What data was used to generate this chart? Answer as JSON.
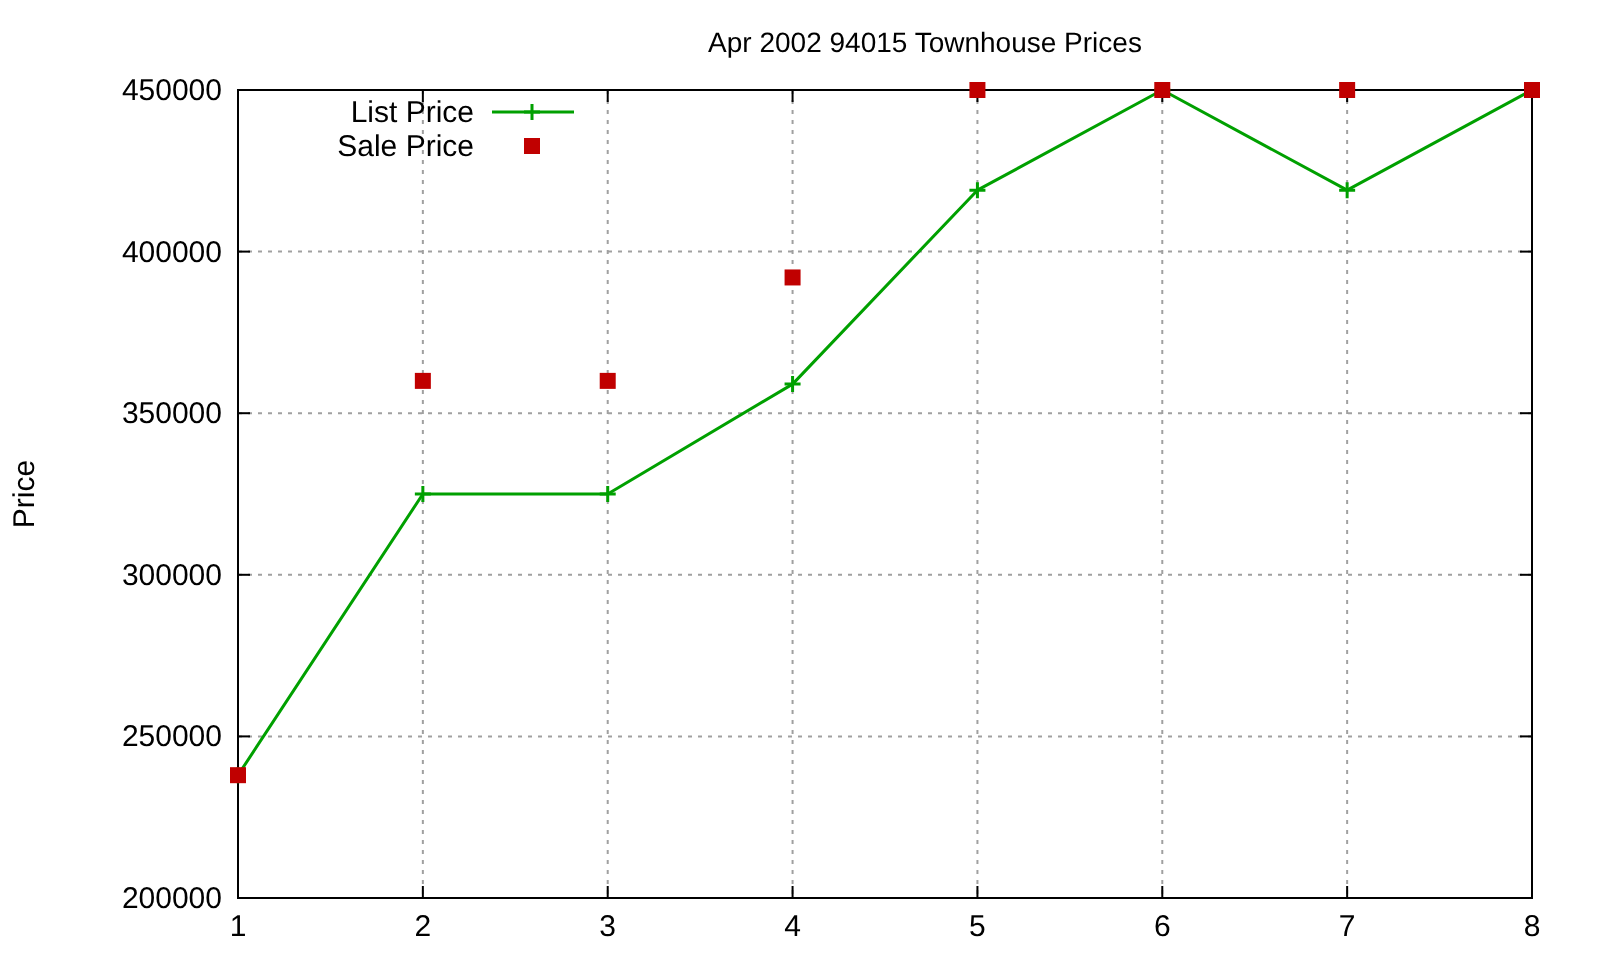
{
  "chart_data": {
    "type": "line",
    "title": "Apr 2002 94015 Townhouse Prices",
    "ylabel": "Price",
    "x": [
      1,
      2,
      3,
      4,
      5,
      6,
      7,
      8
    ],
    "series": [
      {
        "name": "List Price",
        "color": "#00a000",
        "marker": "cross",
        "values": [
          238000,
          325000,
          325000,
          359000,
          419000,
          450000,
          419000,
          450000
        ]
      },
      {
        "name": "Sale Price",
        "type": "scatter",
        "color": "#c00000",
        "marker": "square",
        "values": [
          238000,
          360000,
          360000,
          392000,
          450000,
          450000,
          450000,
          450000
        ]
      }
    ],
    "xlim": [
      1,
      8
    ],
    "xticks": [
      1,
      2,
      3,
      4,
      5,
      6,
      7,
      8
    ],
    "ylim": [
      200000,
      450000
    ],
    "yticks": [
      200000,
      250000,
      300000,
      350000,
      400000,
      450000
    ],
    "grid": true,
    "legend": "top left"
  }
}
